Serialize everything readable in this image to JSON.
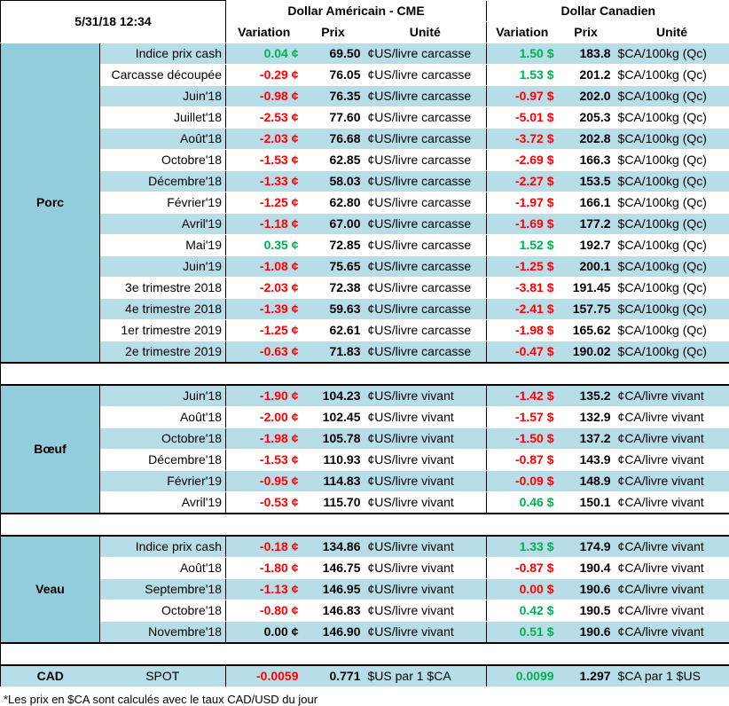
{
  "header": {
    "date": "5/31/18 12:34",
    "usd_group": "Dollar Américain - CME",
    "cad_group": "Dollar Canadien",
    "col_variation": "Variation",
    "col_prix": "Prix",
    "col_unite": "Unité"
  },
  "porc": {
    "category": "Porc",
    "rows": [
      {
        "label": "Indice prix cash",
        "usd_var": "0.04 ¢",
        "usd_var_sign": "pos",
        "usd_price": "69.50",
        "usd_unit": "¢US/livre carcasse",
        "cad_var": "1.50 $",
        "cad_var_sign": "pos",
        "cad_price": "183.8",
        "cad_unit": "$CA/100kg (Qc)"
      },
      {
        "label": "Carcasse découpée",
        "usd_var": "-0.29 ¢",
        "usd_var_sign": "neg",
        "usd_price": "76.05",
        "usd_unit": "¢US/livre carcasse",
        "cad_var": "1.53 $",
        "cad_var_sign": "pos",
        "cad_price": "201.2",
        "cad_unit": "$CA/100kg (Qc)"
      },
      {
        "label": "Juin'18",
        "usd_var": "-0.98 ¢",
        "usd_var_sign": "neg",
        "usd_price": "76.35",
        "usd_unit": "¢US/livre carcasse",
        "cad_var": "-0.97 $",
        "cad_var_sign": "neg",
        "cad_price": "202.0",
        "cad_unit": "$CA/100kg (Qc)"
      },
      {
        "label": "Juillet'18",
        "usd_var": "-2.53 ¢",
        "usd_var_sign": "neg",
        "usd_price": "77.60",
        "usd_unit": "¢US/livre carcasse",
        "cad_var": "-5.01 $",
        "cad_var_sign": "neg",
        "cad_price": "205.3",
        "cad_unit": "$CA/100kg (Qc)"
      },
      {
        "label": "Août'18",
        "usd_var": "-2.03 ¢",
        "usd_var_sign": "neg",
        "usd_price": "76.68",
        "usd_unit": "¢US/livre carcasse",
        "cad_var": "-3.72 $",
        "cad_var_sign": "neg",
        "cad_price": "202.8",
        "cad_unit": "$CA/100kg (Qc)"
      },
      {
        "label": "Octobre'18",
        "usd_var": "-1.53 ¢",
        "usd_var_sign": "neg",
        "usd_price": "62.85",
        "usd_unit": "¢US/livre carcasse",
        "cad_var": "-2.69 $",
        "cad_var_sign": "neg",
        "cad_price": "166.3",
        "cad_unit": "$CA/100kg (Qc)"
      },
      {
        "label": "Décembre'18",
        "usd_var": "-1.33 ¢",
        "usd_var_sign": "neg",
        "usd_price": "58.03",
        "usd_unit": "¢US/livre carcasse",
        "cad_var": "-2.27 $",
        "cad_var_sign": "neg",
        "cad_price": "153.5",
        "cad_unit": "$CA/100kg (Qc)"
      },
      {
        "label": "Février'19",
        "usd_var": "-1.25 ¢",
        "usd_var_sign": "neg",
        "usd_price": "62.80",
        "usd_unit": "¢US/livre carcasse",
        "cad_var": "-1.97 $",
        "cad_var_sign": "neg",
        "cad_price": "166.1",
        "cad_unit": "$CA/100kg (Qc)"
      },
      {
        "label": "Avril'19",
        "usd_var": "-1.18 ¢",
        "usd_var_sign": "neg",
        "usd_price": "67.00",
        "usd_unit": "¢US/livre carcasse",
        "cad_var": "-1.69 $",
        "cad_var_sign": "neg",
        "cad_price": "177.2",
        "cad_unit": "$CA/100kg (Qc)"
      },
      {
        "label": "Mai'19",
        "usd_var": "0.35 ¢",
        "usd_var_sign": "pos",
        "usd_price": "72.85",
        "usd_unit": "¢US/livre carcasse",
        "cad_var": "1.52 $",
        "cad_var_sign": "pos",
        "cad_price": "192.7",
        "cad_unit": "$CA/100kg (Qc)"
      },
      {
        "label": "Juin'19",
        "usd_var": "-1.08 ¢",
        "usd_var_sign": "neg",
        "usd_price": "75.65",
        "usd_unit": "¢US/livre carcasse",
        "cad_var": "-1.25 $",
        "cad_var_sign": "neg",
        "cad_price": "200.1",
        "cad_unit": "$CA/100kg (Qc)"
      },
      {
        "label": "3e trimestre 2018",
        "usd_var": "-2.03 ¢",
        "usd_var_sign": "neg",
        "usd_price": "72.38",
        "usd_unit": "¢US/livre carcasse",
        "cad_var": "-3.81 $",
        "cad_var_sign": "neg",
        "cad_price": "191.45",
        "cad_unit": "$CA/100kg (Qc)"
      },
      {
        "label": "4e trimestre 2018",
        "usd_var": "-1.39 ¢",
        "usd_var_sign": "neg",
        "usd_price": "59.63",
        "usd_unit": "¢US/livre carcasse",
        "cad_var": "-2.41 $",
        "cad_var_sign": "neg",
        "cad_price": "157.75",
        "cad_unit": "$CA/100kg (Qc)"
      },
      {
        "label": "1er trimestre 2019",
        "usd_var": "-1.25 ¢",
        "usd_var_sign": "neg",
        "usd_price": "62.61",
        "usd_unit": "¢US/livre carcasse",
        "cad_var": "-1.98 $",
        "cad_var_sign": "neg",
        "cad_price": "165.62",
        "cad_unit": "$CA/100kg (Qc)"
      },
      {
        "label": "2e trimestre 2019",
        "usd_var": "-0.63 ¢",
        "usd_var_sign": "neg",
        "usd_price": "71.83",
        "usd_unit": "¢US/livre carcasse",
        "cad_var": "-0.47 $",
        "cad_var_sign": "neg",
        "cad_price": "190.02",
        "cad_unit": "$CA/100kg (Qc)"
      }
    ]
  },
  "boeuf": {
    "category": "Bœuf",
    "rows": [
      {
        "label": "Juin'18",
        "usd_var": "-1.90 ¢",
        "usd_var_sign": "neg",
        "usd_price": "104.23",
        "usd_unit": "¢US/livre vivant",
        "cad_var": "-1.42 $",
        "cad_var_sign": "neg",
        "cad_price": "135.2",
        "cad_unit": "¢CA/livre vivant"
      },
      {
        "label": "Août'18",
        "usd_var": "-2.00 ¢",
        "usd_var_sign": "neg",
        "usd_price": "102.45",
        "usd_unit": "¢US/livre vivant",
        "cad_var": "-1.57 $",
        "cad_var_sign": "neg",
        "cad_price": "132.9",
        "cad_unit": "¢CA/livre vivant"
      },
      {
        "label": "Octobre'18",
        "usd_var": "-1.98 ¢",
        "usd_var_sign": "neg",
        "usd_price": "105.78",
        "usd_unit": "¢US/livre vivant",
        "cad_var": "-1.50 $",
        "cad_var_sign": "neg",
        "cad_price": "137.2",
        "cad_unit": "¢CA/livre vivant"
      },
      {
        "label": "Décembre'18",
        "usd_var": "-1.53 ¢",
        "usd_var_sign": "neg",
        "usd_price": "110.93",
        "usd_unit": "¢US/livre vivant",
        "cad_var": "-0.87 $",
        "cad_var_sign": "neg",
        "cad_price": "143.9",
        "cad_unit": "¢CA/livre vivant"
      },
      {
        "label": "Février'19",
        "usd_var": "-0.95 ¢",
        "usd_var_sign": "neg",
        "usd_price": "114.83",
        "usd_unit": "¢US/livre vivant",
        "cad_var": "-0.09 $",
        "cad_var_sign": "neg",
        "cad_price": "148.9",
        "cad_unit": "¢CA/livre vivant"
      },
      {
        "label": "Avril'19",
        "usd_var": "-0.53 ¢",
        "usd_var_sign": "neg",
        "usd_price": "115.70",
        "usd_unit": "¢US/livre vivant",
        "cad_var": "0.46 $",
        "cad_var_sign": "pos",
        "cad_price": "150.1",
        "cad_unit": "¢CA/livre vivant"
      }
    ]
  },
  "veau": {
    "category": "Veau",
    "rows": [
      {
        "label": "Indice prix cash",
        "usd_var": "-0.18 ¢",
        "usd_var_sign": "neg",
        "usd_price": "134.86",
        "usd_unit": "¢US/livre vivant",
        "cad_var": "1.33 $",
        "cad_var_sign": "pos",
        "cad_price": "174.9",
        "cad_unit": "¢CA/livre vivant"
      },
      {
        "label": "Août'18",
        "usd_var": "-1.80 ¢",
        "usd_var_sign": "neg",
        "usd_price": "146.75",
        "usd_unit": "¢US/livre vivant",
        "cad_var": "-0.87 $",
        "cad_var_sign": "neg",
        "cad_price": "190.4",
        "cad_unit": "¢CA/livre vivant"
      },
      {
        "label": "Septembre'18",
        "usd_var": "-1.13 ¢",
        "usd_var_sign": "neg",
        "usd_price": "146.95",
        "usd_unit": "¢US/livre vivant",
        "cad_var": "0.00 $",
        "cad_var_sign": "neg",
        "cad_price": "190.6",
        "cad_unit": "¢CA/livre vivant"
      },
      {
        "label": "Octobre'18",
        "usd_var": "-0.80 ¢",
        "usd_var_sign": "neg",
        "usd_price": "146.83",
        "usd_unit": "¢US/livre vivant",
        "cad_var": "0.42 $",
        "cad_var_sign": "pos",
        "cad_price": "190.5",
        "cad_unit": "¢CA/livre vivant"
      },
      {
        "label": "Novembre'18",
        "usd_var": "0.00 ¢",
        "usd_var_sign": "zero",
        "usd_price": "146.90",
        "usd_unit": "¢US/livre vivant",
        "cad_var": "0.51 $",
        "cad_var_sign": "pos",
        "cad_price": "190.6",
        "cad_unit": "¢CA/livre vivant"
      }
    ]
  },
  "cad": {
    "category": "CAD",
    "label": "SPOT",
    "usd_var": "-0.0059",
    "usd_var_sign": "neg",
    "usd_price": "0.771",
    "usd_unit": "$US par 1 $CA",
    "cad_var": "0.0099",
    "cad_var_sign": "pos",
    "cad_price": "1.297",
    "cad_unit": "$CA par 1 $US"
  },
  "footnote": "*Les  prix en $CA sont calculés avec le taux CAD/USD du jour",
  "colors": {
    "row_blue": "#b7dee8",
    "category_blue": "#92cddc",
    "negative": "#ff0000",
    "positive": "#00b050"
  }
}
